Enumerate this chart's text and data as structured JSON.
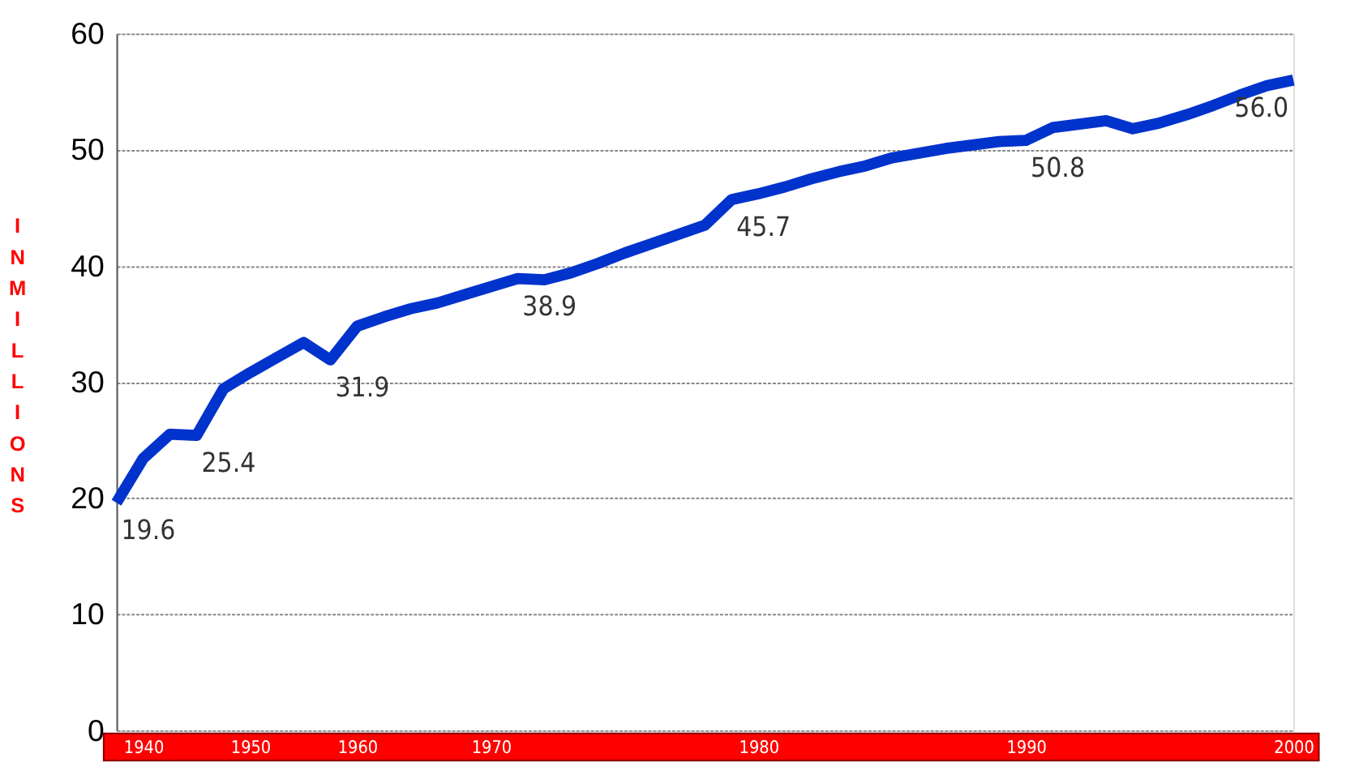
{
  "chart_data": {
    "type": "line",
    "ylabel": "IN MILLIONS",
    "categories": [
      null,
      "1940",
      null,
      null,
      null,
      "1950",
      null,
      null,
      null,
      "1960",
      null,
      null,
      null,
      null,
      "1970",
      null,
      null,
      null,
      null,
      null,
      null,
      null,
      null,
      null,
      "1980",
      null,
      null,
      null,
      null,
      null,
      null,
      null,
      null,
      null,
      "1990",
      null,
      null,
      null,
      null,
      null,
      null,
      null,
      null,
      null,
      "2000"
    ],
    "series": [
      {
        "color": "#0033cc",
        "values": [
          19.6,
          23.4,
          25.5,
          25.4,
          29.4,
          30.8,
          32.1,
          33.4,
          31.9,
          34.8,
          35.6,
          36.3,
          36.8,
          37.5,
          38.2,
          38.9,
          38.8,
          39.4,
          40.2,
          41.1,
          41.9,
          42.7,
          43.5,
          45.7,
          46.2,
          46.8,
          47.5,
          48.1,
          48.6,
          49.3,
          49.7,
          50.1,
          50.4,
          50.7,
          50.8,
          51.9,
          52.2,
          52.5,
          51.8,
          52.3,
          53.0,
          53.8,
          54.7,
          55.5,
          56.0
        ],
        "value_labels": [
          "19.6",
          null,
          null,
          "25.4",
          null,
          null,
          null,
          null,
          "31.9",
          null,
          null,
          null,
          null,
          null,
          null,
          "38.9",
          null,
          null,
          null,
          null,
          null,
          null,
          null,
          "45.7",
          null,
          null,
          null,
          null,
          null,
          null,
          null,
          null,
          null,
          null,
          "50.8",
          null,
          null,
          null,
          null,
          null,
          null,
          null,
          null,
          null,
          "56.0"
        ]
      }
    ],
    "ylim": [
      0,
      60
    ],
    "yticks": [
      0,
      10,
      20,
      30,
      40,
      50,
      60
    ],
    "grid": "y",
    "marker": "none",
    "line_style": "solid"
  }
}
